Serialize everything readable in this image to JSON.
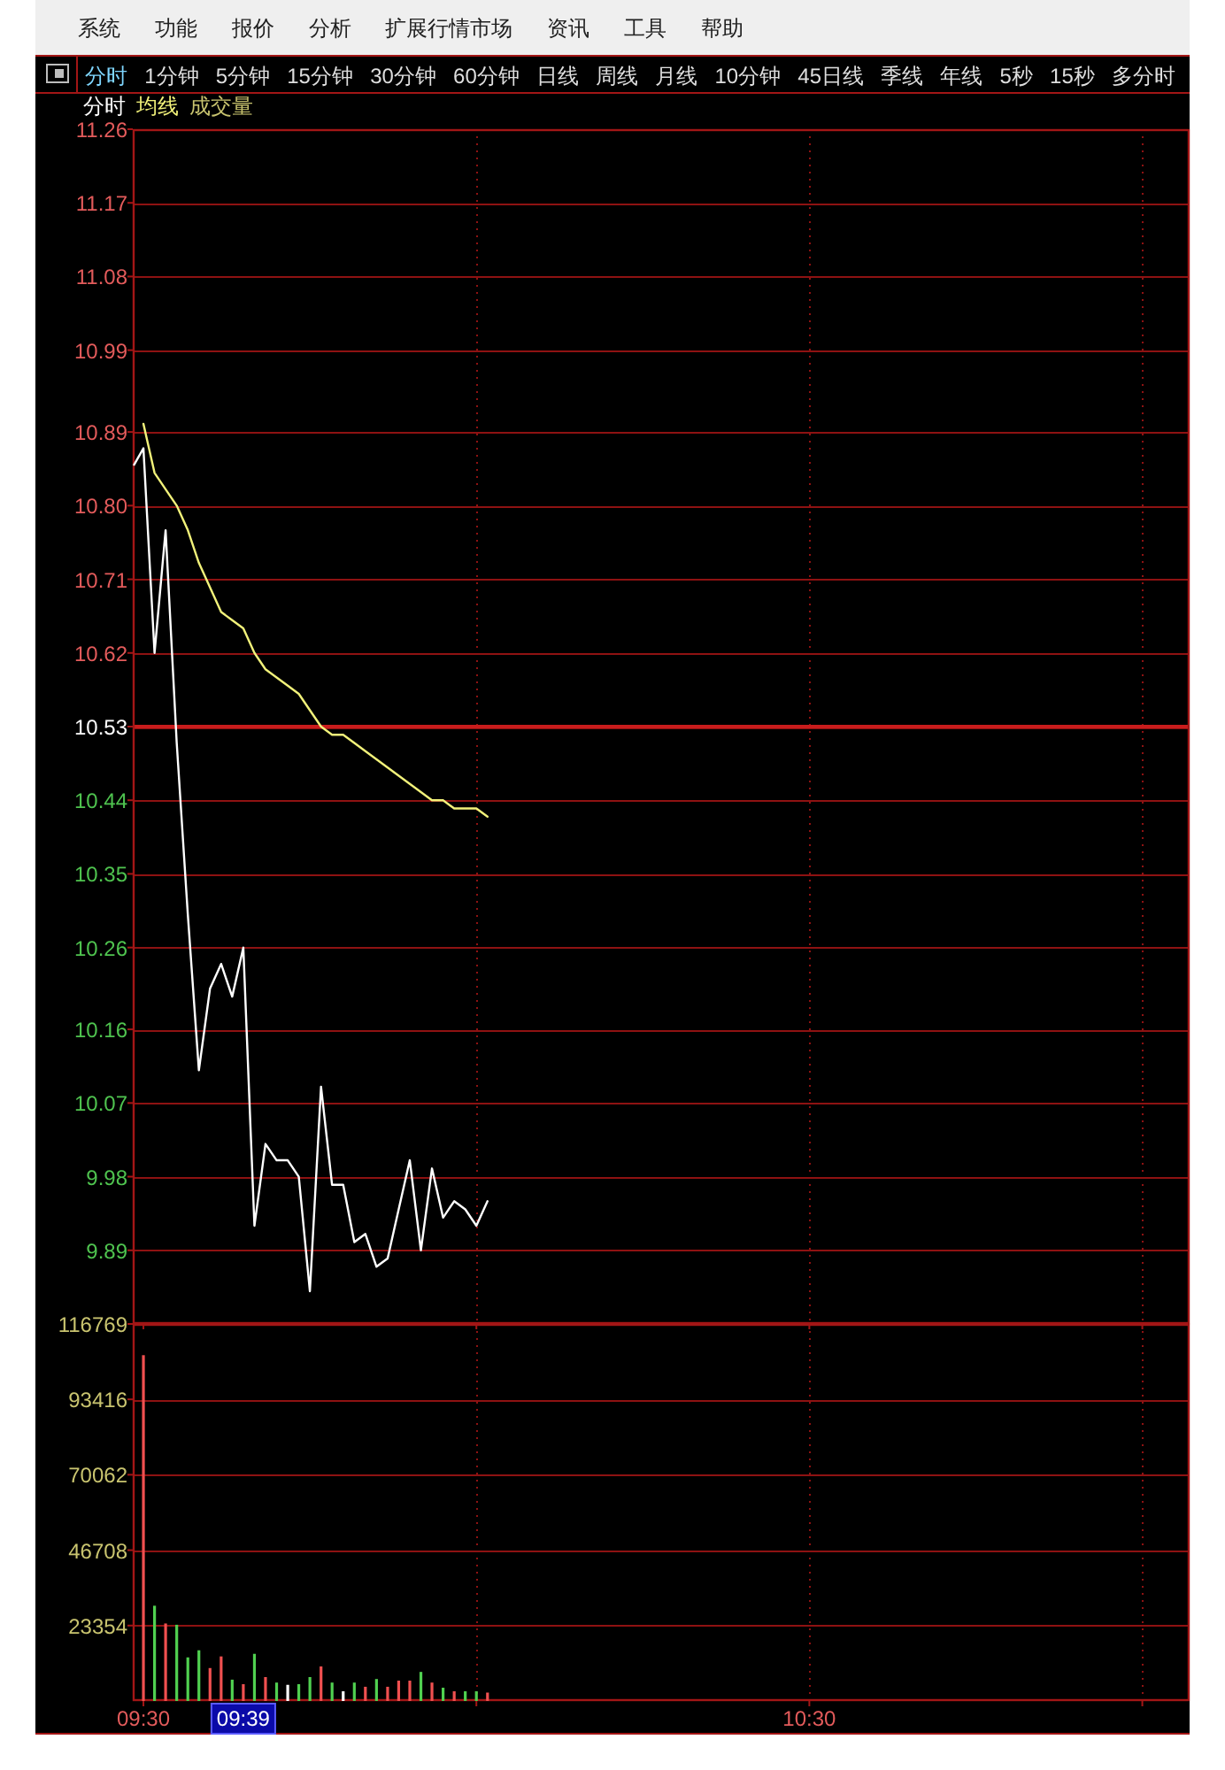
{
  "chart_data": [
    {
      "type": "other",
      "annotations": [
        "系统",
        "功能",
        "报价",
        "分析",
        "扩展行情市场",
        "资讯",
        "工具",
        "帮助"
      ]
    },
    {
      "type": "other",
      "annotations": [
        "分时",
        "1分钟",
        "5分钟",
        "15分钟",
        "30分钟",
        "60分钟",
        "日线",
        "周线",
        "月线",
        "10分钟",
        "45日线",
        "季线",
        "年线",
        "5秒",
        "15秒",
        "多分时"
      ]
    },
    {
      "type": "line",
      "legend": "top left",
      "grid": true,
      "tick_labels": "y",
      "xlim": [
        9.484,
        11.071
      ],
      "xticks": [
        {
          "value": 9.5,
          "label": null
        },
        {
          "value": 10,
          "label": null
        },
        {
          "value": 10.5,
          "label": null
        },
        {
          "value": 11,
          "label": null
        }
      ],
      "ylim": [
        9.8,
        11.26
      ],
      "yticks": [
        9.89,
        9.98,
        10.07,
        10.16,
        10.26,
        10.35,
        10.44,
        10.53,
        10.62,
        10.71,
        {
          "value": 10.8,
          "label": "10.80"
        },
        10.89,
        10.99,
        11.08,
        11.17,
        11.26
      ],
      "ref_lines": [
        {
          "axis": "y",
          "value": 10.53,
          "color": "#c81c1c"
        }
      ],
      "series": [
        {
          "name": "分时",
          "color": "#ffffff",
          "x": [
            9.486,
            9.5,
            9.5167,
            9.5333,
            9.55,
            9.5667,
            9.5833,
            9.6,
            9.6167,
            9.6333,
            9.65,
            9.6667,
            9.6833,
            9.7,
            9.7167,
            9.7333,
            9.75,
            9.7667,
            9.7833,
            9.8,
            9.8167,
            9.8333,
            9.85,
            9.8667,
            9.8833,
            9.9,
            9.9167,
            9.9333,
            9.95,
            9.9667,
            9.9833,
            10,
            10.0167
          ],
          "values": [
            10.85,
            10.87,
            10.62,
            10.77,
            10.51,
            10.3,
            10.11,
            10.21,
            10.24,
            10.2,
            10.26,
            9.92,
            10.02,
            10.0,
            10.0,
            9.98,
            9.84,
            10.09,
            9.97,
            9.97,
            9.9,
            9.91,
            9.87,
            9.88,
            9.94,
            10.0,
            9.89,
            9.99,
            9.93,
            9.95,
            9.94,
            9.92,
            9.95
          ]
        },
        {
          "name": "均线",
          "color": "#f2f27a",
          "x": [
            9.5,
            9.5167,
            9.5333,
            9.55,
            9.5667,
            9.5833,
            9.6,
            9.6167,
            9.6333,
            9.65,
            9.6667,
            9.6833,
            9.7,
            9.7167,
            9.7333,
            9.75,
            9.7667,
            9.7833,
            9.8,
            9.8167,
            9.8333,
            9.85,
            9.8667,
            9.8833,
            9.9,
            9.9167,
            9.9333,
            9.95,
            9.9667,
            9.9833,
            10,
            10.0167
          ],
          "values": [
            10.9,
            10.84,
            10.82,
            10.8,
            10.77,
            10.73,
            10.7,
            10.67,
            10.66,
            10.65,
            10.62,
            10.6,
            10.59,
            10.58,
            10.57,
            10.55,
            10.53,
            10.52,
            10.52,
            10.51,
            10.5,
            10.49,
            10.48,
            10.47,
            10.46,
            10.45,
            10.44,
            10.44,
            10.43,
            10.43,
            10.43,
            10.42
          ]
        }
      ]
    },
    {
      "type": "bar",
      "legend": "top left",
      "grid": true,
      "x": [
        9.5,
        9.5167,
        9.5333,
        9.55,
        9.5667,
        9.5833,
        9.6,
        9.6167,
        9.6333,
        9.65,
        9.6667,
        9.6833,
        9.7,
        9.7167,
        9.7333,
        9.75,
        9.7667,
        9.7833,
        9.8,
        9.8167,
        9.8333,
        9.85,
        9.8667,
        9.8833,
        9.9,
        9.9167,
        9.9333,
        9.95,
        9.9667,
        9.9833,
        10,
        10.0167
      ],
      "xlim": [
        9.484,
        11.071
      ],
      "xticks": [
        {
          "value": 9.5,
          "label": "09:30"
        },
        {
          "value": 10,
          "label": null
        },
        {
          "value": 10.5,
          "label": "10:30"
        },
        {
          "value": 11,
          "label": null
        }
      ],
      "ylim": [
        0,
        116769
      ],
      "yticks": [
        23354,
        46708,
        70062,
        93416,
        116769
      ],
      "annotations": [
        {
          "text": "09:39",
          "x": 9.65
        }
      ],
      "series": [
        {
          "name": "成交量",
          "values": [
            107100,
            29500,
            24000,
            23600,
            13500,
            15700,
            10200,
            13800,
            6600,
            5200,
            14600,
            7400,
            5700,
            5000,
            5200,
            7400,
            10700,
            5700,
            3000,
            5700,
            4400,
            6800,
            4400,
            6300,
            6300,
            9000,
            5700,
            4100,
            3000,
            3000,
            3000,
            2600
          ],
          "colors": [
            "#f05050",
            "#50d050",
            "#f05050",
            "#50d050",
            "#50d050",
            "#50d050",
            "#f05050",
            "#f05050",
            "#50d050",
            "#f05050",
            "#50d050",
            "#f05050",
            "#50d050",
            "#ffffff",
            "#50d050",
            "#50d050",
            "#f05050",
            "#50d050",
            "#ffffff",
            "#50d050",
            "#f05050",
            "#50d050",
            "#f05050",
            "#f05050",
            "#f05050",
            "#50d050",
            "#f05050",
            "#50d050",
            "#f05050",
            "#50d050",
            "#50d050",
            "#f05050"
          ]
        }
      ]
    }
  ]
}
